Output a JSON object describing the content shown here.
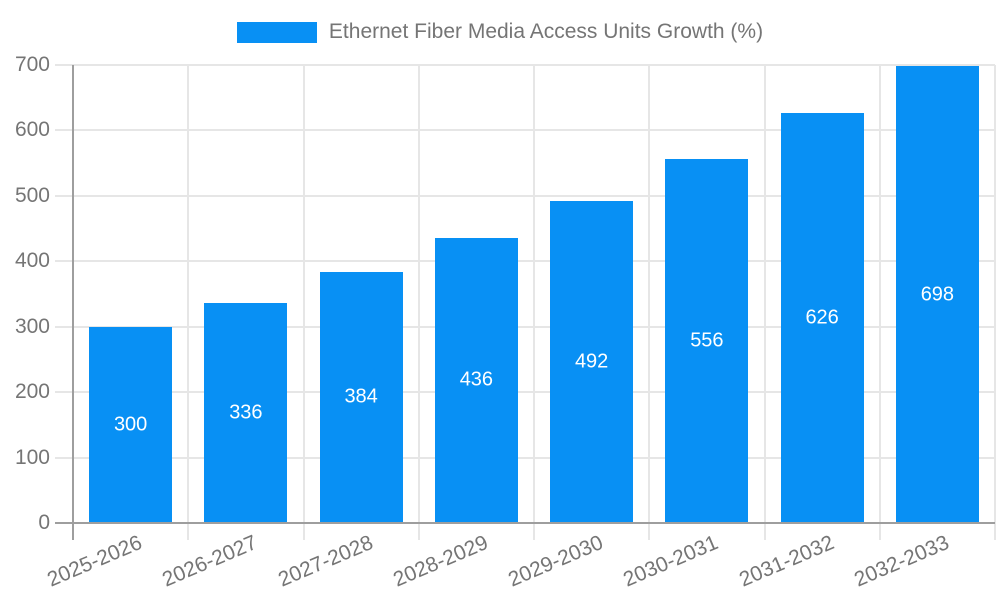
{
  "chart_data": {
    "type": "bar",
    "title": "",
    "legend_label": "Ethernet Fiber Media Access Units Growth (%)",
    "legend_position": "top",
    "categories": [
      "2025-2026",
      "2026-2027",
      "2027-2028",
      "2028-2029",
      "2029-2030",
      "2030-2031",
      "2031-2032",
      "2032-2033"
    ],
    "values": [
      300,
      336,
      384,
      436,
      492,
      556,
      626,
      698
    ],
    "xlabel": "",
    "ylabel": "",
    "ylim": [
      0,
      700
    ],
    "yticks": [
      0,
      100,
      200,
      300,
      400,
      500,
      600,
      700
    ],
    "grid": true,
    "x_tick_rotation_deg": -23,
    "value_labels_inside_bars": true,
    "colors": {
      "bar": "#0890f4",
      "value_label": "#ffffff",
      "gridline": "#e6e6e6",
      "axis": "#9e9e9e",
      "tick_label": "#757575"
    }
  }
}
